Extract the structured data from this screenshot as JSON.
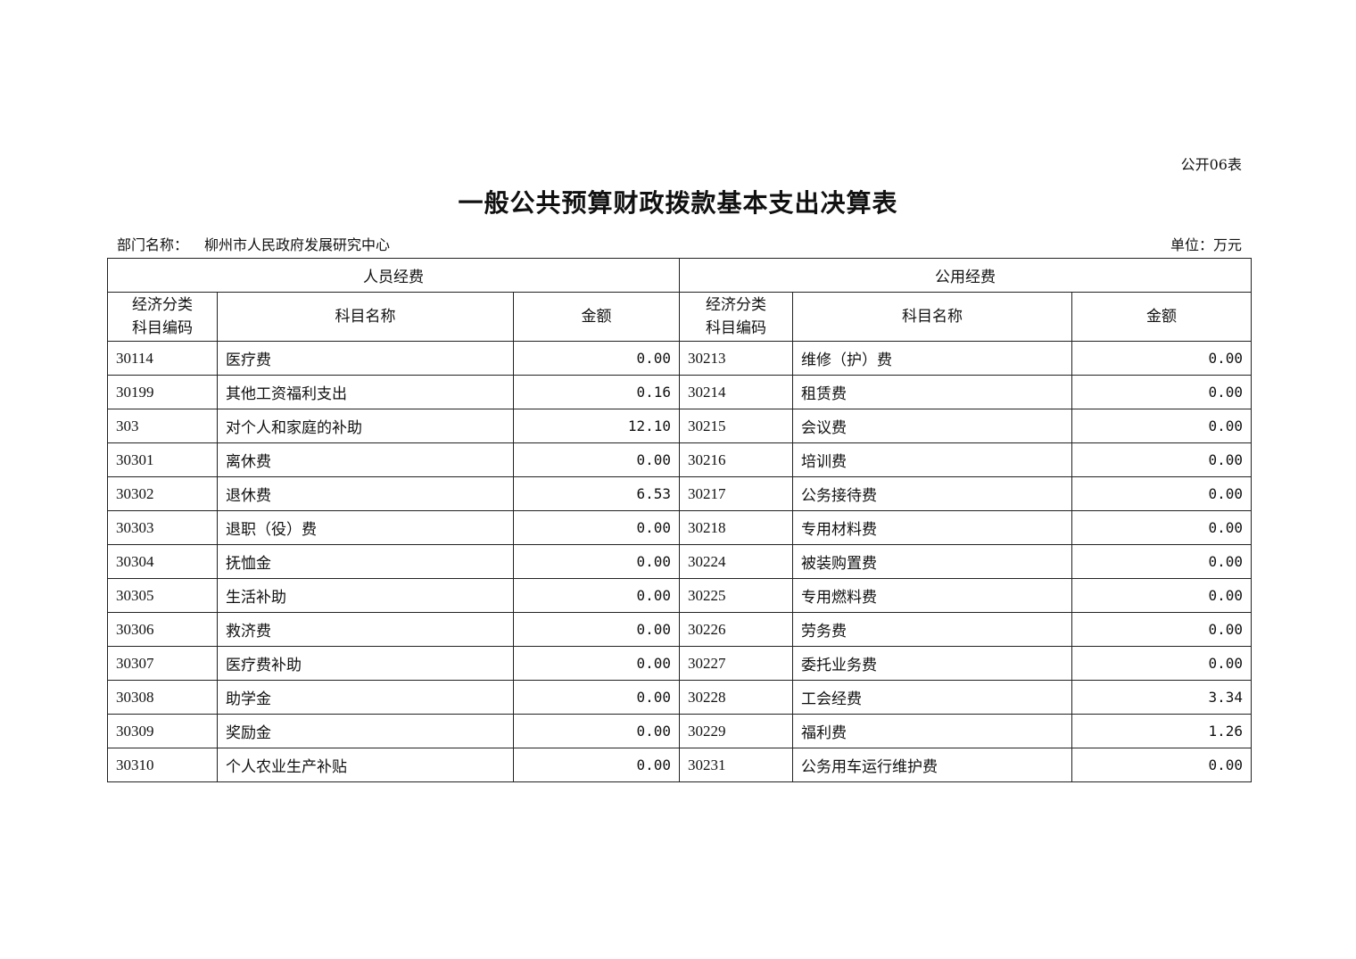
{
  "form_number": "公开06表",
  "title": "一般公共预算财政拨款基本支出决算表",
  "department_label": "部门名称：",
  "department_name": "柳州市人民政府发展研究中心",
  "unit_label": "单位：万元",
  "groups": {
    "personnel": "人员经费",
    "public": "公用经费"
  },
  "columns": {
    "code_line1": "经济分类",
    "code_line2": "科目编码",
    "name": "科目名称",
    "amount": "金额"
  },
  "rows": [
    {
      "code1": "30114",
      "name1": "医疗费",
      "amt1": "0.00",
      "code2": "30213",
      "name2": "维修（护）费",
      "amt2": "0.00"
    },
    {
      "code1": "30199",
      "name1": "其他工资福利支出",
      "amt1": "0.16",
      "code2": "30214",
      "name2": "租赁费",
      "amt2": "0.00"
    },
    {
      "code1": "303",
      "name1": "对个人和家庭的补助",
      "amt1": "12.10",
      "code2": "30215",
      "name2": "会议费",
      "amt2": "0.00"
    },
    {
      "code1": "30301",
      "name1": "离休费",
      "amt1": "0.00",
      "code2": "30216",
      "name2": "培训费",
      "amt2": "0.00"
    },
    {
      "code1": "30302",
      "name1": "退休费",
      "amt1": "6.53",
      "code2": "30217",
      "name2": "公务接待费",
      "amt2": "0.00"
    },
    {
      "code1": "30303",
      "name1": "退职（役）费",
      "amt1": "0.00",
      "code2": "30218",
      "name2": "专用材料费",
      "amt2": "0.00"
    },
    {
      "code1": "30304",
      "name1": "抚恤金",
      "amt1": "0.00",
      "code2": "30224",
      "name2": "被装购置费",
      "amt2": "0.00"
    },
    {
      "code1": "30305",
      "name1": "生活补助",
      "amt1": "0.00",
      "code2": "30225",
      "name2": "专用燃料费",
      "amt2": "0.00"
    },
    {
      "code1": "30306",
      "name1": "救济费",
      "amt1": "0.00",
      "code2": "30226",
      "name2": "劳务费",
      "amt2": "0.00"
    },
    {
      "code1": "30307",
      "name1": "医疗费补助",
      "amt1": "0.00",
      "code2": "30227",
      "name2": "委托业务费",
      "amt2": "0.00"
    },
    {
      "code1": "30308",
      "name1": "助学金",
      "amt1": "0.00",
      "code2": "30228",
      "name2": "工会经费",
      "amt2": "3.34"
    },
    {
      "code1": "30309",
      "name1": "奖励金",
      "amt1": "0.00",
      "code2": "30229",
      "name2": "福利费",
      "amt2": "1.26"
    },
    {
      "code1": "30310",
      "name1": "个人农业生产补贴",
      "amt1": "0.00",
      "code2": "30231",
      "name2": "公务用车运行维护费",
      "amt2": "0.00"
    }
  ]
}
